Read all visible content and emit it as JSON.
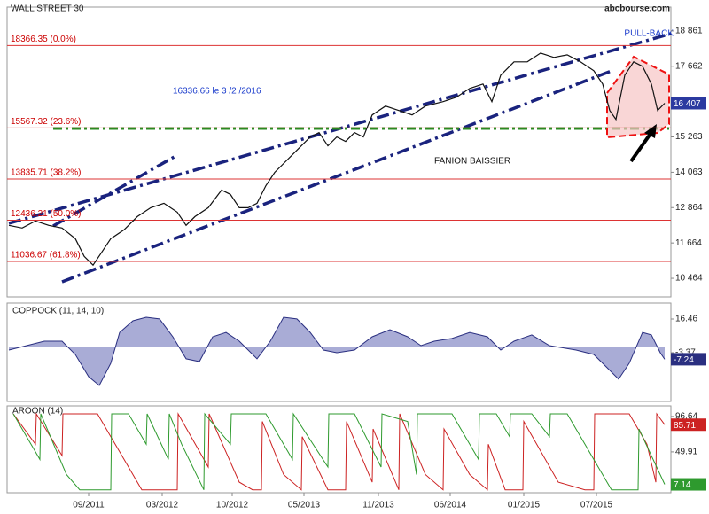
{
  "chart_data": [
    {
      "type": "line",
      "title": "WALL STREET 30",
      "source": "abcbourse.com",
      "annotations": [
        "PULL-BACK",
        "16336.66 le 3 /2 /2016",
        "FANION BAISSIER"
      ],
      "x": [
        0,
        15,
        30,
        45,
        60,
        75,
        85,
        95,
        105,
        115,
        130,
        145,
        160,
        175,
        190,
        200,
        210,
        225,
        240,
        250,
        260,
        270,
        280,
        290,
        300,
        310,
        320,
        330,
        340,
        350,
        360,
        370,
        380,
        390,
        400,
        410,
        425,
        440,
        455,
        470,
        490,
        505,
        520,
        535,
        545,
        555,
        570,
        585,
        600,
        615,
        630,
        645,
        660,
        670,
        678,
        685,
        695,
        705,
        715,
        725,
        732,
        740
      ],
      "series": [
        {
          "color": "#111111",
          "values": [
            12260,
            12170,
            12410,
            12260,
            12170,
            11810,
            11210,
            10910,
            11360,
            11810,
            12110,
            12560,
            12860,
            13010,
            12710,
            12260,
            12560,
            12860,
            13460,
            13310,
            12860,
            12860,
            13010,
            13610,
            14060,
            14360,
            14660,
            14960,
            15260,
            15410,
            14960,
            15260,
            15110,
            15410,
            15260,
            16010,
            16310,
            16160,
            16010,
            16310,
            16460,
            16610,
            16910,
            17060,
            16460,
            17360,
            17810,
            17810,
            18110,
            17960,
            18050,
            17810,
            17510,
            17060,
            16160,
            15860,
            17360,
            17810,
            17660,
            17060,
            16160,
            16407
          ]
        }
      ],
      "current": {
        "value": 16407,
        "label": "16 407"
      },
      "fib_levels": [
        {
          "value": 18366.35,
          "label": "18366.35  (0.0%)"
        },
        {
          "value": 15567.32,
          "label": "15567.32  (23.6%)"
        },
        {
          "value": 13835.71,
          "label": "13835.71  (38.2%)"
        },
        {
          "value": 12436.21,
          "label": "12436.21  (50.0%)"
        },
        {
          "value": 11036.67,
          "label": "11036.67  (61.8%)"
        }
      ],
      "xlim": [
        0,
        745
      ],
      "ylim": [
        9834,
        19670
      ],
      "yticks": [
        {
          "value": 18861,
          "label": "18 861"
        },
        {
          "value": 17662,
          "label": "17 662"
        },
        {
          "value": 15263,
          "label": "15 263"
        },
        {
          "value": 14063,
          "label": "14 063"
        },
        {
          "value": 12864,
          "label": "12 864"
        },
        {
          "value": 11664,
          "label": "11 664"
        },
        {
          "value": 10464,
          "label": "10 464"
        }
      ]
    },
    {
      "type": "area",
      "title": "COPPOCK (11, 14, 10)",
      "color": "#2a2f80",
      "fill": "#a9acd6",
      "x": [
        0,
        20,
        40,
        60,
        75,
        90,
        102,
        115,
        125,
        140,
        155,
        170,
        185,
        200,
        215,
        230,
        245,
        260,
        280,
        295,
        310,
        325,
        340,
        355,
        370,
        390,
        410,
        430,
        450,
        465,
        480,
        500,
        520,
        540,
        555,
        570,
        590,
        610,
        640,
        660,
        675,
        688,
        700,
        715,
        725,
        735,
        740
      ],
      "values": [
        -1.8,
        0.8,
        3.4,
        3.4,
        -4.4,
        -17.5,
        -22.7,
        -9.6,
        8.6,
        15.4,
        17.5,
        16.5,
        6.0,
        -7.0,
        -8.6,
        6.0,
        8.6,
        3.4,
        -7.0,
        3.4,
        17.5,
        16.5,
        8.6,
        -1.8,
        -3.4,
        -1.8,
        6.0,
        10.2,
        6.0,
        0.8,
        3.4,
        5.0,
        8.6,
        6.0,
        -1.8,
        3.4,
        7.1,
        0.8,
        -1.8,
        -4.4,
        -12.2,
        -19.0,
        -9.6,
        8.6,
        7.1,
        -3.4,
        -7.24
      ],
      "xlim": [
        0,
        745
      ],
      "ylim": [
        -32.1,
        25.86
      ],
      "yticks": [
        16.46,
        -3.37
      ]
    },
    {
      "type": "line",
      "title": "AROON (14)",
      "series": [
        {
          "color": "#cc2222",
          "x": [
            5,
            30,
            31,
            60,
            61,
            100,
            130,
            150,
            190,
            191,
            225,
            226,
            260,
            275,
            285,
            286,
            310,
            330,
            331,
            360,
            380,
            381,
            410,
            411,
            440,
            441,
            470,
            490,
            491,
            520,
            540,
            541,
            560,
            580,
            581,
            620,
            650,
            660,
            661,
            700,
            720,
            730,
            731,
            740
          ],
          "values": [
            100,
            60,
            100,
            45,
            100,
            100,
            40,
            0,
            0,
            100,
            30,
            100,
            10,
            0,
            0,
            90,
            20,
            0,
            70,
            0,
            0,
            90,
            10,
            80,
            0,
            100,
            20,
            0,
            80,
            20,
            0,
            60,
            0,
            0,
            90,
            10,
            0,
            0,
            100,
            100,
            60,
            10,
            100,
            85.71
          ]
        },
        {
          "color": "#2e9a2e",
          "x": [
            5,
            35,
            36,
            65,
            80,
            115,
            116,
            135,
            155,
            156,
            180,
            181,
            195,
            220,
            221,
            250,
            251,
            290,
            320,
            321,
            360,
            361,
            390,
            420,
            421,
            450,
            460,
            461,
            500,
            530,
            531,
            550,
            565,
            566,
            590,
            610,
            611,
            630,
            650,
            680,
            710,
            711,
            740
          ],
          "values": [
            100,
            40,
            100,
            20,
            0,
            0,
            100,
            100,
            60,
            100,
            40,
            100,
            60,
            0,
            100,
            60,
            100,
            100,
            40,
            100,
            30,
            100,
            100,
            30,
            100,
            90,
            20,
            100,
            100,
            40,
            100,
            100,
            70,
            100,
            100,
            70,
            100,
            100,
            60,
            0,
            0,
            80,
            7.14
          ]
        }
      ],
      "xlim": [
        0,
        745
      ],
      "ylim": [
        -3.9,
        110.5
      ],
      "yticks": [
        96.64,
        49.91
      ],
      "xticks": [
        {
          "value": 90,
          "label": "09/2011"
        },
        {
          "value": 173,
          "label": "03/2012"
        },
        {
          "value": 252,
          "label": "10/2012"
        },
        {
          "value": 333,
          "label": "05/2013"
        },
        {
          "value": 417,
          "label": "11/2013"
        },
        {
          "value": 498,
          "label": "06/2014"
        },
        {
          "value": 581,
          "label": "01/2015"
        },
        {
          "value": 663,
          "label": "07/2015"
        }
      ]
    }
  ]
}
